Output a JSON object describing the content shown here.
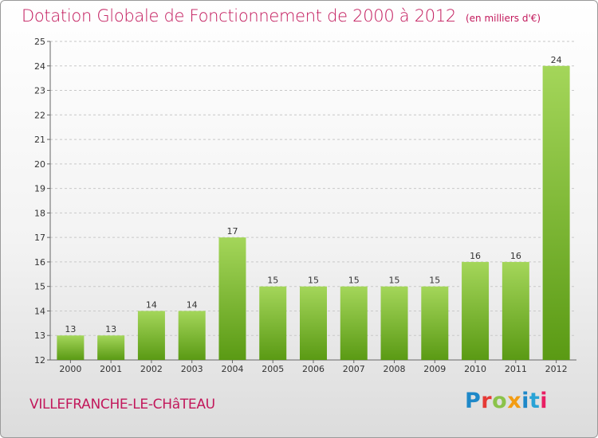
{
  "header": {
    "title": "Dotation Globale de Fonctionnement de 2000 à 2012",
    "unit": "(en milliers d'€)"
  },
  "footer": {
    "commune": "VILLEFRANCHE-LE-CHâTEAU",
    "logo_letters": [
      "P",
      "r",
      "o",
      "x",
      "i",
      "t",
      "i"
    ]
  },
  "colors": {
    "title": "#c2185b",
    "bar_top": "#a4d65a",
    "bar_bottom": "#5a9a14"
  },
  "chart_data": {
    "type": "bar",
    "categories": [
      "2000",
      "2001",
      "2002",
      "2003",
      "2004",
      "2005",
      "2006",
      "2007",
      "2008",
      "2009",
      "2010",
      "2011",
      "2012"
    ],
    "values": [
      13,
      13,
      14,
      14,
      17,
      15,
      15,
      15,
      15,
      15,
      16,
      16,
      24
    ],
    "ylim": [
      12,
      25
    ],
    "yticks": [
      12,
      13,
      14,
      15,
      16,
      17,
      18,
      19,
      20,
      21,
      22,
      23,
      24,
      25
    ],
    "grid": true,
    "legend": "none"
  }
}
